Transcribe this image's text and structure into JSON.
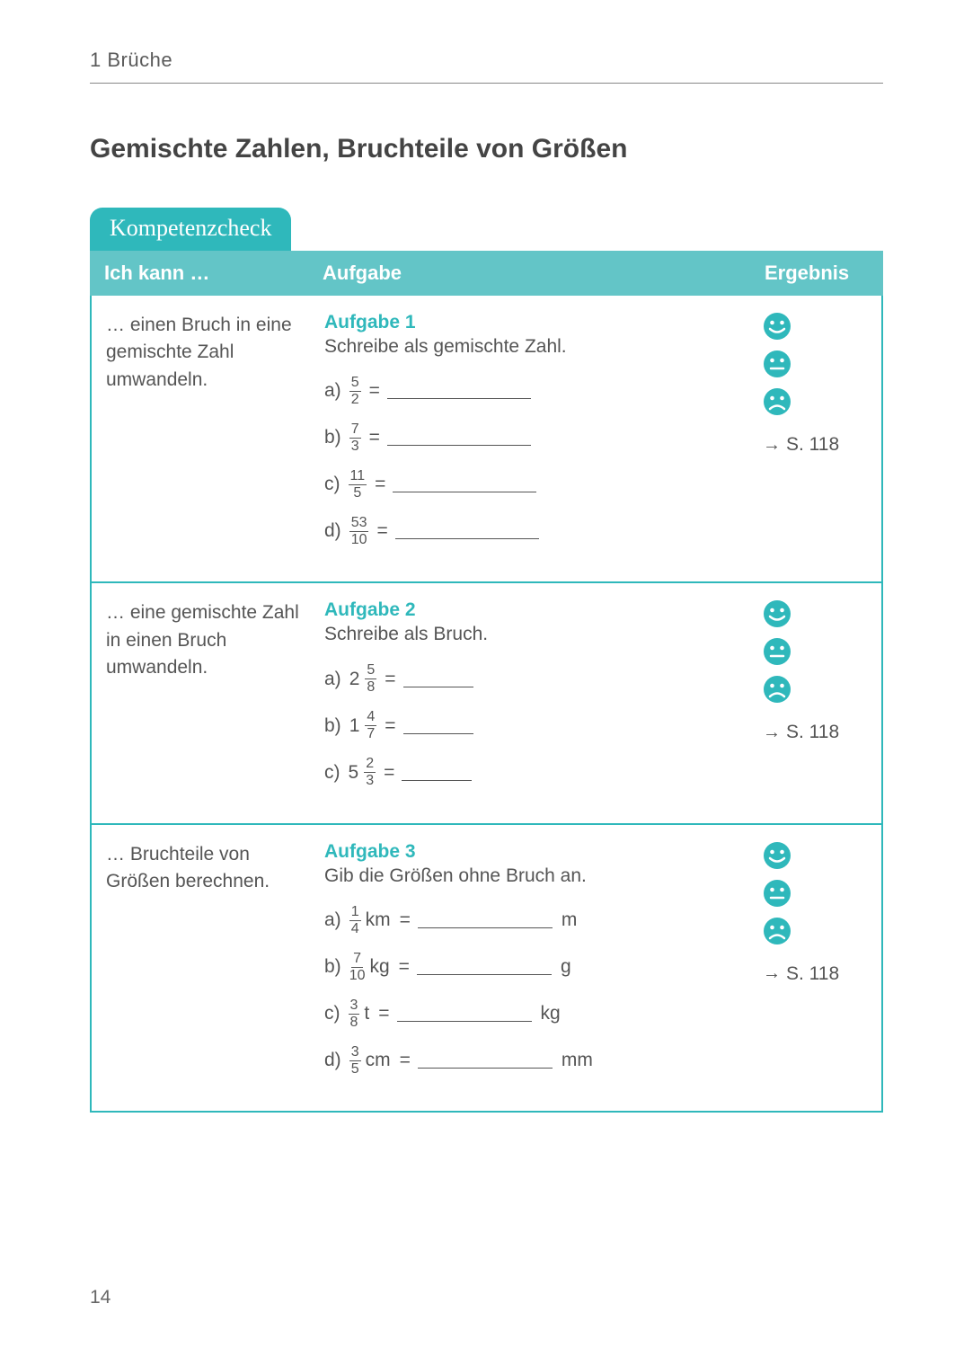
{
  "chapter": "1  Brüche",
  "section_title": "Gemischte Zahlen, Bruchteile von Größen",
  "tab_label": "Kompetenzcheck",
  "headers": {
    "skill": "Ich kann …",
    "task": "Aufgabe",
    "result": "Ergebnis"
  },
  "colors": {
    "accent": "#2fb8bb",
    "header_bg": "#63c5c7",
    "smile": "#2fb8bb"
  },
  "rows": [
    {
      "skill": "… einen Bruch in eine gemischte Zahl umwandeln.",
      "task_title": "Aufgabe 1",
      "task_desc": "Schreibe als gemischte Zahl.",
      "items": [
        {
          "label": "a)",
          "num": "5",
          "den": "2",
          "blank": "long"
        },
        {
          "label": "b)",
          "num": "7",
          "den": "3",
          "blank": "long"
        },
        {
          "label": "c)",
          "num": "11",
          "den": "5",
          "blank": "long"
        },
        {
          "label": "d)",
          "num": "53",
          "den": "10",
          "blank": "long"
        }
      ],
      "page_ref": "S. 118"
    },
    {
      "skill": "… eine gemischte Zahl in einen Bruch umwandeln.",
      "task_title": "Aufgabe 2",
      "task_desc": "Schreibe als Bruch.",
      "items": [
        {
          "label": "a)",
          "whole": "2",
          "num": "5",
          "den": "8",
          "blank": "short"
        },
        {
          "label": "b)",
          "whole": "1",
          "num": "4",
          "den": "7",
          "blank": "short"
        },
        {
          "label": "c)",
          "whole": "5",
          "num": "2",
          "den": "3",
          "blank": "short"
        }
      ],
      "page_ref": "S. 118"
    },
    {
      "skill": "… Bruchteile von Größen berechnen.",
      "task_title": "Aufgabe 3",
      "task_desc": "Gib die Größen ohne Bruch an.",
      "items": [
        {
          "label": "a)",
          "num": "1",
          "den": "4",
          "unit_pre": "km",
          "blank": "med",
          "unit_post": "m"
        },
        {
          "label": "b)",
          "num": "7",
          "den": "10",
          "unit_pre": "kg",
          "blank": "med",
          "unit_post": "g"
        },
        {
          "label": "c)",
          "num": "3",
          "den": "8",
          "unit_pre": "t",
          "blank": "med",
          "unit_post": "kg"
        },
        {
          "label": "d)",
          "num": "3",
          "den": "5",
          "unit_pre": "cm",
          "blank": "med",
          "unit_post": "mm"
        }
      ],
      "page_ref": "S. 118"
    }
  ],
  "page_number": "14"
}
